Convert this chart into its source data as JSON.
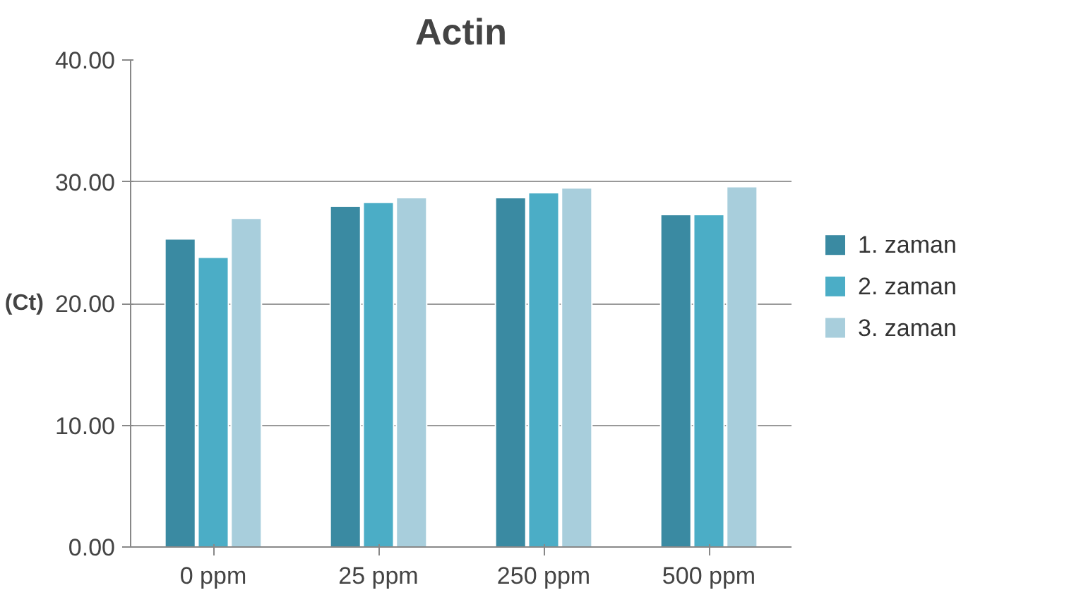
{
  "chart_data": {
    "type": "bar",
    "title": "Actin",
    "ylabel": "(Ct)",
    "categories": [
      "0 ppm",
      "25 ppm",
      "250 ppm",
      "500 ppm"
    ],
    "series": [
      {
        "name": "1. zaman",
        "color": "#3a8aa2",
        "values": [
          25.3,
          28.0,
          28.7,
          27.3
        ]
      },
      {
        "name": "2. zaman",
        "color": "#4badc6",
        "values": [
          23.8,
          28.3,
          29.1,
          27.3
        ]
      },
      {
        "name": "3. zaman",
        "color": "#a8cedc",
        "values": [
          27.0,
          28.7,
          29.5,
          29.6
        ]
      }
    ],
    "ylim": [
      0,
      40
    ],
    "yticks": [
      {
        "value": 0,
        "label": "0.00"
      },
      {
        "value": 10,
        "label": "10.00"
      },
      {
        "value": 20,
        "label": "20.00"
      },
      {
        "value": 30,
        "label": "30.00"
      },
      {
        "value": 40,
        "label": "40.00"
      }
    ],
    "grid": "y",
    "legend": "right"
  }
}
